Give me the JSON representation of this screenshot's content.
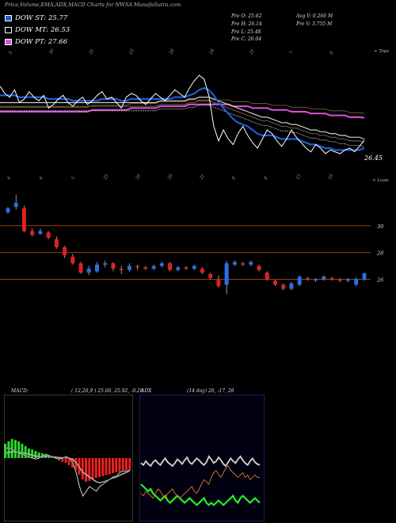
{
  "header": {
    "title": "Price,Volume,EMA,ADX,MACD Charts for NWSA MunafaSutra.com"
  },
  "legend": [
    {
      "label": "DOW ST: 25.77",
      "color": "#1e5bd6"
    },
    {
      "label": "DOW MT: 26.53",
      "color": "#ffffff"
    },
    {
      "label": "DOW PT: 27.66",
      "color": "#e050e0"
    }
  ],
  "stats": {
    "open": "Pre  O: 25.62",
    "high": "Pre  H: 26.14",
    "low": "Pre  L: 25.48",
    "close": "Pre  C: 26.04",
    "avg_volume": "Avg V: 0.266  M",
    "prev_volume": "Pre  V: 3.755 M"
  },
  "corner_labels": {
    "price_panel": "< Tops",
    "candle_panel": "< Lows"
  },
  "chart_data": [
    {
      "type": "line",
      "name": "price-ema",
      "last_price_label": "26.45",
      "top_tick_labels": [
        "5",
        "30",
        "31",
        "25",
        "26",
        "28",
        "31",
        "7",
        "8"
      ],
      "bottom_tick_labels": [
        "6",
        "8",
        "5",
        "25",
        "26",
        "26",
        "31",
        "8",
        "8",
        "15",
        "16"
      ],
      "price": [
        29.4,
        29.0,
        28.8,
        29.2,
        28.5,
        28.7,
        29.1,
        28.8,
        28.6,
        28.9,
        28.2,
        28.4,
        28.7,
        28.9,
        28.5,
        28.3,
        28.6,
        28.8,
        28.4,
        28.6,
        28.9,
        29.1,
        28.7,
        28.8,
        28.5,
        28.2,
        28.8,
        29.0,
        28.9,
        28.6,
        28.4,
        28.7,
        29.0,
        28.8,
        28.6,
        28.9,
        29.2,
        29.0,
        28.8,
        29.3,
        29.7,
        30.0,
        29.8,
        28.9,
        27.2,
        26.4,
        27.0,
        26.5,
        26.2,
        26.8,
        27.2,
        26.7,
        26.3,
        26.0,
        26.5,
        27.0,
        26.8,
        26.4,
        26.1,
        26.5,
        27.0,
        26.6,
        26.3,
        26.0,
        25.8,
        26.2,
        26.0,
        25.7,
        25.9,
        25.8,
        25.7,
        25.9,
        26.0,
        25.8,
        26.1,
        26.45
      ],
      "ema_short": [
        28.9,
        28.9,
        28.9,
        28.9,
        28.8,
        28.8,
        28.8,
        28.8,
        28.8,
        28.8,
        28.7,
        28.7,
        28.7,
        28.7,
        28.7,
        28.6,
        28.6,
        28.6,
        28.6,
        28.6,
        28.6,
        28.7,
        28.7,
        28.7,
        28.7,
        28.6,
        28.6,
        28.7,
        28.7,
        28.7,
        28.7,
        28.7,
        28.7,
        28.7,
        28.7,
        28.7,
        28.8,
        28.8,
        28.8,
        28.9,
        29.0,
        29.2,
        29.3,
        29.2,
        28.9,
        28.5,
        28.2,
        27.9,
        27.6,
        27.4,
        27.3,
        27.2,
        27.0,
        26.8,
        26.7,
        26.7,
        26.7,
        26.6,
        26.5,
        26.5,
        26.5,
        26.5,
        26.4,
        26.3,
        26.2,
        26.2,
        26.1,
        26.0,
        26.0,
        25.9,
        25.9,
        25.9,
        25.9,
        25.9,
        25.9,
        26.0
      ],
      "ema_mid": [
        28.5,
        28.5,
        28.5,
        28.5,
        28.5,
        28.5,
        28.5,
        28.5,
        28.5,
        28.5,
        28.5,
        28.5,
        28.5,
        28.5,
        28.5,
        28.5,
        28.5,
        28.5,
        28.5,
        28.5,
        28.5,
        28.5,
        28.5,
        28.5,
        28.5,
        28.5,
        28.5,
        28.5,
        28.5,
        28.5,
        28.5,
        28.5,
        28.5,
        28.6,
        28.6,
        28.6,
        28.6,
        28.6,
        28.6,
        28.7,
        28.7,
        28.8,
        28.8,
        28.8,
        28.7,
        28.6,
        28.5,
        28.4,
        28.3,
        28.2,
        28.1,
        28.0,
        27.9,
        27.8,
        27.7,
        27.7,
        27.6,
        27.5,
        27.4,
        27.4,
        27.3,
        27.3,
        27.2,
        27.1,
        27.0,
        27.0,
        26.9,
        26.9,
        26.8,
        26.8,
        26.7,
        26.7,
        26.6,
        26.6,
        26.6,
        26.5
      ],
      "ema_long": [
        28.0,
        28.0,
        28.0,
        28.0,
        28.0,
        28.0,
        28.0,
        28.0,
        28.0,
        28.0,
        28.0,
        28.0,
        28.0,
        28.0,
        28.0,
        28.0,
        28.0,
        28.0,
        28.0,
        28.1,
        28.1,
        28.1,
        28.1,
        28.1,
        28.1,
        28.1,
        28.1,
        28.2,
        28.2,
        28.2,
        28.2,
        28.2,
        28.2,
        28.3,
        28.3,
        28.3,
        28.3,
        28.3,
        28.3,
        28.4,
        28.4,
        28.4,
        28.4,
        28.4,
        28.4,
        28.4,
        28.4,
        28.4,
        28.3,
        28.3,
        28.3,
        28.3,
        28.2,
        28.2,
        28.2,
        28.2,
        28.1,
        28.1,
        28.1,
        28.1,
        28.0,
        28.0,
        28.0,
        28.0,
        27.9,
        27.9,
        27.9,
        27.9,
        27.8,
        27.8,
        27.8,
        27.8,
        27.7,
        27.7,
        27.7,
        27.66
      ],
      "ylim": [
        25.0,
        31.0
      ]
    },
    {
      "type": "candlestick",
      "name": "price-candles",
      "price_levels": [
        "30",
        "28",
        "26"
      ],
      "level_values": [
        30,
        28,
        26
      ],
      "ylim": [
        24.5,
        33.0
      ],
      "candles": [
        {
          "o": 31.0,
          "c": 31.3,
          "h": 31.4,
          "l": 30.9
        },
        {
          "o": 31.4,
          "c": 31.7,
          "h": 32.3,
          "l": 31.2
        },
        {
          "o": 31.3,
          "c": 29.6,
          "h": 31.5,
          "l": 29.5
        },
        {
          "o": 29.6,
          "c": 29.3,
          "h": 29.8,
          "l": 29.2
        },
        {
          "o": 29.4,
          "c": 29.6,
          "h": 29.8,
          "l": 29.3
        },
        {
          "o": 29.5,
          "c": 29.1,
          "h": 29.6,
          "l": 29.0
        },
        {
          "o": 29.0,
          "c": 28.4,
          "h": 29.2,
          "l": 28.3
        },
        {
          "o": 28.4,
          "c": 27.8,
          "h": 28.5,
          "l": 27.6
        },
        {
          "o": 27.7,
          "c": 27.2,
          "h": 27.9,
          "l": 27.1
        },
        {
          "o": 27.2,
          "c": 26.5,
          "h": 27.3,
          "l": 26.4
        },
        {
          "o": 26.5,
          "c": 26.8,
          "h": 27.0,
          "l": 26.3
        },
        {
          "o": 26.6,
          "c": 27.1,
          "h": 27.3,
          "l": 26.5
        },
        {
          "o": 27.1,
          "c": 27.2,
          "h": 27.4,
          "l": 26.9
        },
        {
          "o": 27.2,
          "c": 26.8,
          "h": 27.3,
          "l": 26.6
        },
        {
          "o": 26.8,
          "c": 26.7,
          "h": 27.0,
          "l": 26.4
        },
        {
          "o": 26.7,
          "c": 27.0,
          "h": 27.2,
          "l": 26.6
        },
        {
          "o": 27.0,
          "c": 26.9,
          "h": 27.1,
          "l": 26.7
        },
        {
          "o": 26.9,
          "c": 26.8,
          "h": 27.0,
          "l": 26.7
        },
        {
          "o": 26.8,
          "c": 27.0,
          "h": 27.1,
          "l": 26.7
        },
        {
          "o": 27.0,
          "c": 27.2,
          "h": 27.3,
          "l": 26.9
        },
        {
          "o": 27.2,
          "c": 26.7,
          "h": 27.3,
          "l": 26.6
        },
        {
          "o": 26.7,
          "c": 26.9,
          "h": 27.0,
          "l": 26.6
        },
        {
          "o": 26.9,
          "c": 26.8,
          "h": 27.0,
          "l": 26.7
        },
        {
          "o": 26.8,
          "c": 27.0,
          "h": 27.1,
          "l": 26.7
        },
        {
          "o": 26.8,
          "c": 26.5,
          "h": 26.9,
          "l": 26.4
        },
        {
          "o": 26.4,
          "c": 26.1,
          "h": 26.5,
          "l": 26.0
        },
        {
          "o": 26.0,
          "c": 25.5,
          "h": 26.3,
          "l": 25.4
        },
        {
          "o": 25.6,
          "c": 27.2,
          "h": 27.4,
          "l": 24.9
        },
        {
          "o": 27.1,
          "c": 27.3,
          "h": 27.4,
          "l": 27.0
        },
        {
          "o": 27.2,
          "c": 27.1,
          "h": 27.3,
          "l": 27.0
        },
        {
          "o": 27.1,
          "c": 27.3,
          "h": 27.4,
          "l": 27.0
        },
        {
          "o": 27.0,
          "c": 26.7,
          "h": 27.1,
          "l": 26.6
        },
        {
          "o": 26.5,
          "c": 26.0,
          "h": 26.6,
          "l": 25.9
        },
        {
          "o": 25.9,
          "c": 25.6,
          "h": 26.0,
          "l": 25.5
        },
        {
          "o": 25.6,
          "c": 25.3,
          "h": 25.7,
          "l": 25.2
        },
        {
          "o": 25.3,
          "c": 25.7,
          "h": 25.8,
          "l": 25.2
        },
        {
          "o": 25.6,
          "c": 26.2,
          "h": 26.3,
          "l": 25.5
        },
        {
          "o": 26.1,
          "c": 26.0,
          "h": 26.2,
          "l": 25.9
        },
        {
          "o": 26.0,
          "c": 26.0,
          "h": 26.1,
          "l": 25.8
        },
        {
          "o": 26.0,
          "c": 26.2,
          "h": 26.3,
          "l": 25.9
        },
        {
          "o": 26.1,
          "c": 26.0,
          "h": 26.2,
          "l": 25.9
        },
        {
          "o": 26.0,
          "c": 25.9,
          "h": 26.1,
          "l": 25.8
        },
        {
          "o": 25.9,
          "c": 26.0,
          "h": 26.1,
          "l": 25.8
        },
        {
          "o": 25.62,
          "c": 26.04,
          "h": 26.14,
          "l": 25.48
        },
        {
          "o": 26.0,
          "c": 26.45,
          "h": 26.5,
          "l": 25.9
        }
      ]
    },
    {
      "type": "bar",
      "name": "macd",
      "title": "MACD:",
      "params": "( 12,26,9 ) 25.66,  25.92,  -0.26",
      "histogram": [
        0.3,
        0.35,
        0.4,
        0.38,
        0.35,
        0.3,
        0.25,
        0.2,
        0.18,
        0.15,
        0.12,
        0.1,
        0.08,
        0.05,
        0.02,
        -0.02,
        -0.05,
        -0.08,
        -0.1,
        -0.15,
        -0.2,
        -0.25,
        -0.35,
        -0.45,
        -0.5,
        -0.48,
        -0.45,
        -0.42,
        -0.4,
        -0.38,
        -0.36,
        -0.34,
        -0.32,
        -0.3,
        -0.29,
        -0.28,
        -0.27,
        -0.26
      ],
      "macd_line": [
        0.2,
        0.22,
        0.18,
        0.15,
        0.1,
        0.08,
        0.05,
        0.02,
        0.0,
        -0.02,
        0.0,
        0.05,
        0.08,
        0.05,
        0.02,
        0.0,
        -0.02,
        0.0,
        0.03,
        0.0,
        -0.1,
        -0.3,
        -0.6,
        -0.8,
        -0.7,
        -0.6,
        -0.65,
        -0.7,
        -0.6,
        -0.55,
        -0.5,
        -0.45,
        -0.4,
        -0.38,
        -0.3,
        -0.28,
        -0.27,
        -0.26
      ],
      "signal_line": [
        0.1,
        0.12,
        0.13,
        0.13,
        0.12,
        0.11,
        0.1,
        0.08,
        0.06,
        0.04,
        0.03,
        0.03,
        0.04,
        0.04,
        0.03,
        0.02,
        0.01,
        0.01,
        0.01,
        0.0,
        -0.03,
        -0.1,
        -0.2,
        -0.3,
        -0.35,
        -0.4,
        -0.45,
        -0.5,
        -0.52,
        -0.5,
        -0.48,
        -0.45,
        -0.42,
        -0.4,
        -0.36,
        -0.33,
        -0.3,
        -0.27
      ],
      "ylim": [
        -1.2,
        1.2
      ]
    },
    {
      "type": "line",
      "name": "adx",
      "title": "ADX",
      "params": "(14 day) 26, -17, 28",
      "adx": [
        28,
        26,
        30,
        27,
        25,
        29,
        31,
        28,
        26,
        30,
        33,
        29,
        27,
        25,
        28,
        32,
        30,
        27,
        31,
        34,
        29,
        27,
        30,
        33,
        31,
        28,
        26,
        29,
        35,
        32,
        28,
        30,
        34,
        31,
        27,
        25,
        29,
        33,
        30,
        28,
        32,
        35,
        31,
        28,
        26,
        30,
        33,
        29,
        27,
        26
      ],
      "di_plus": [
        10,
        9,
        11,
        10,
        9,
        8,
        10,
        12,
        11,
        9,
        8,
        10,
        11,
        12,
        10,
        9,
        8,
        9,
        10,
        11,
        12,
        13,
        11,
        10,
        12,
        14,
        16,
        15,
        14,
        17,
        19,
        20,
        18,
        17,
        19,
        21,
        22,
        20,
        19,
        18,
        17,
        18,
        19,
        17,
        18,
        16,
        17,
        18,
        17,
        17
      ],
      "di_minus": [
        14,
        13,
        12,
        11,
        12,
        10,
        9,
        8,
        7,
        8,
        9,
        7,
        6,
        7,
        8,
        9,
        8,
        7,
        6,
        7,
        8,
        7,
        6,
        5,
        6,
        7,
        8,
        6,
        5,
        6,
        5,
        6,
        7,
        6,
        5,
        6,
        7,
        8,
        9,
        7,
        6,
        8,
        9,
        8,
        7,
        6,
        7,
        8,
        7,
        6
      ],
      "ylim": [
        0,
        50
      ]
    }
  ]
}
